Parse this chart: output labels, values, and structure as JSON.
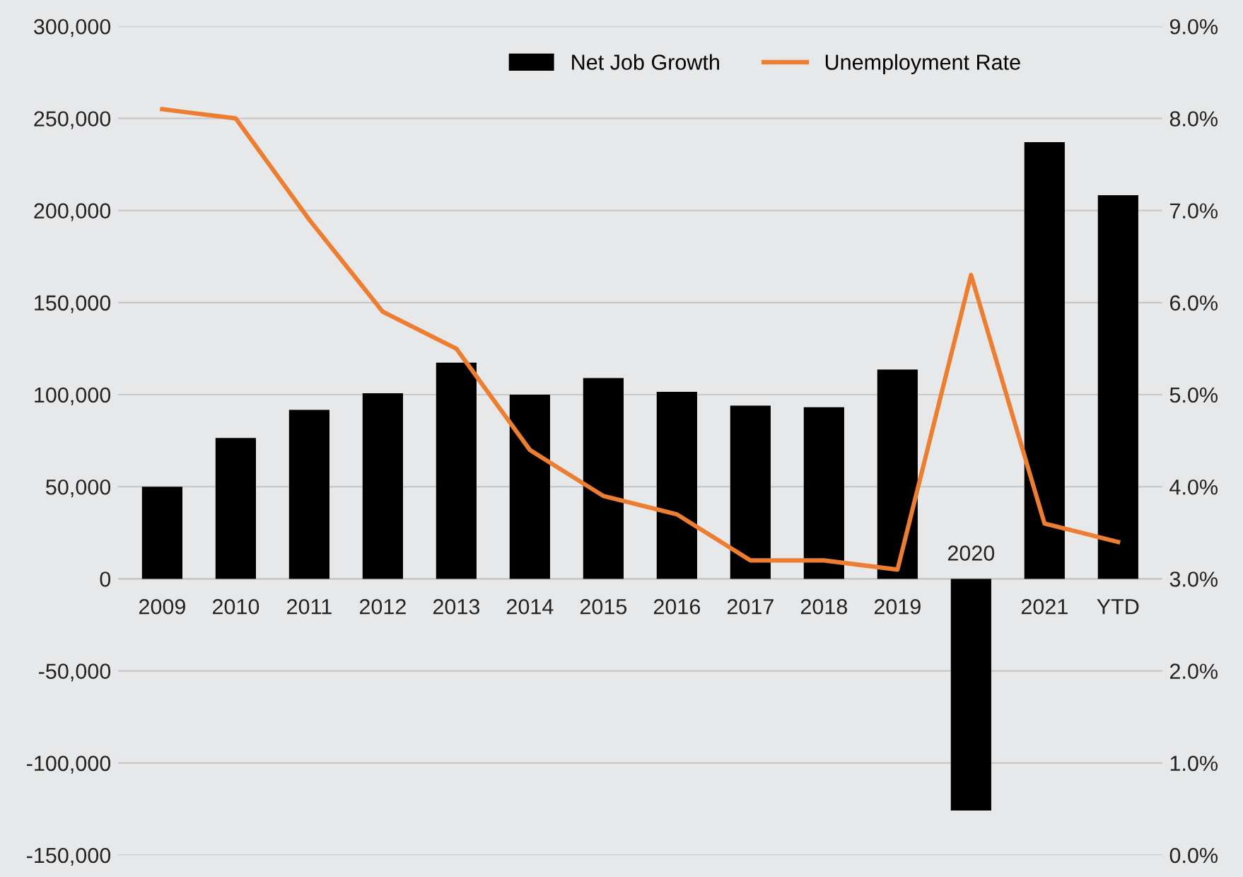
{
  "chart_data": {
    "type": "bar",
    "categories": [
      "2009",
      "2010",
      "2011",
      "2012",
      "2013",
      "2014",
      "2015",
      "2016",
      "2017",
      "2018",
      "2019",
      "2020",
      "2021",
      "YTD"
    ],
    "series": [
      {
        "name": "Net Job Growth",
        "color": "#000000",
        "values": [
          50000,
          76500,
          91700,
          100800,
          117400,
          100000,
          109000,
          101500,
          94000,
          93200,
          113600,
          -125800,
          237100,
          208300
        ]
      },
      {
        "name": "Unemployment Rate",
        "type": "line",
        "axis": "y2",
        "color": "#ed7d31",
        "values": [
          8.1,
          8.0,
          6.9,
          5.9,
          5.5,
          4.4,
          3.9,
          3.7,
          3.2,
          3.2,
          3.1,
          6.3,
          3.6,
          3.4
        ]
      }
    ],
    "ylim": [
      -150000,
      300000
    ],
    "yticks": [
      {
        "value": -150000,
        "label": "-150,000"
      },
      {
        "value": -100000,
        "label": "-100,000"
      },
      {
        "value": -50000,
        "label": "-50,000"
      },
      {
        "value": 0,
        "label": "0"
      },
      {
        "value": 50000,
        "label": "50,000"
      },
      {
        "value": 100000,
        "label": "100,000"
      },
      {
        "value": 150000,
        "label": "150,000"
      },
      {
        "value": 200000,
        "label": "200,000"
      },
      {
        "value": 250000,
        "label": "250,000"
      },
      {
        "value": 300000,
        "label": "300,000"
      }
    ],
    "y2lim": [
      0,
      9
    ],
    "y2ticks": [
      {
        "value": 0,
        "label": "0.0%"
      },
      {
        "value": 1,
        "label": "1.0%"
      },
      {
        "value": 2,
        "label": "2.0%"
      },
      {
        "value": 3,
        "label": "3.0%"
      },
      {
        "value": 4,
        "label": "4.0%"
      },
      {
        "value": 5,
        "label": "5.0%"
      },
      {
        "value": 6,
        "label": "6.0%"
      },
      {
        "value": 7,
        "label": "7.0%"
      },
      {
        "value": 8,
        "label": "8.0%"
      },
      {
        "value": 9,
        "label": "9.0%"
      }
    ],
    "grid": "y",
    "legend": "top"
  }
}
